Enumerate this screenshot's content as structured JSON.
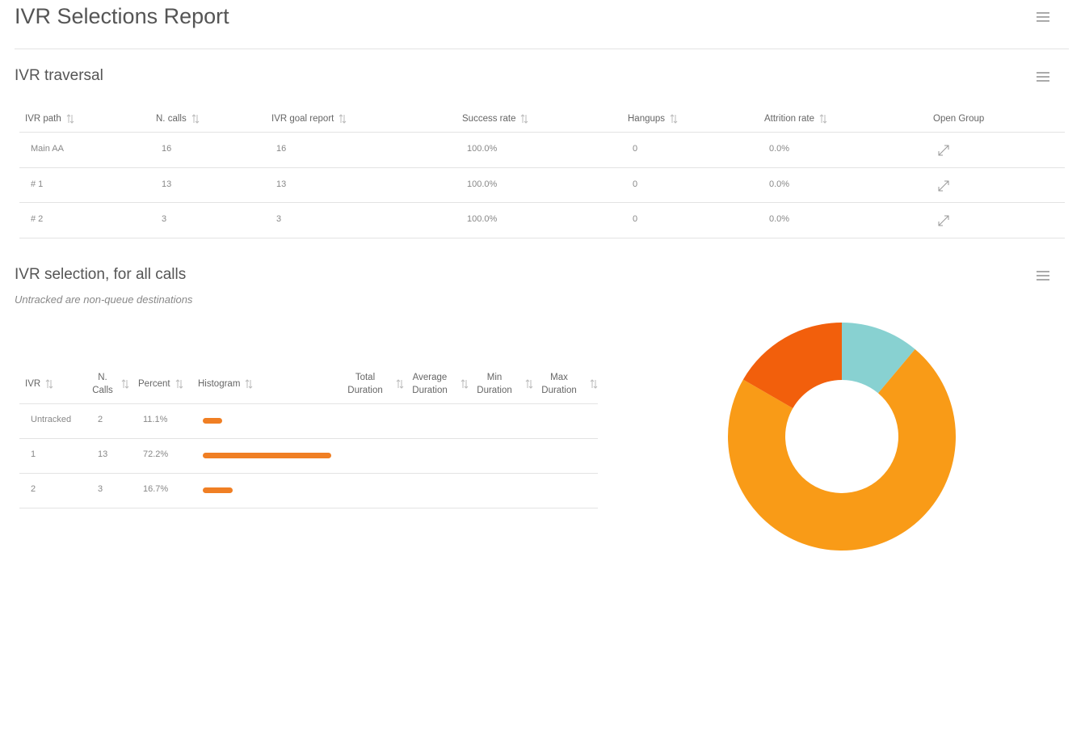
{
  "header": {
    "title": "IVR Selections Report"
  },
  "traversal": {
    "title": "IVR traversal",
    "columns": [
      "IVR path",
      "N. calls",
      "IVR goal report",
      "Success rate",
      "Hangups",
      "Attrition rate",
      "Open Group"
    ],
    "rows": [
      [
        "Main AA",
        16,
        16,
        "100.0%",
        0,
        "0.0%"
      ],
      [
        "# 1",
        13,
        13,
        "100.0%",
        0,
        "0.0%"
      ],
      [
        "# 2",
        3,
        3,
        "100.0%",
        0,
        "0.0%"
      ]
    ]
  },
  "selection": {
    "title": "IVR selection, for all calls",
    "subtitle": "Untracked are non-queue destinations",
    "columns": [
      "IVR",
      "N. Calls",
      "Percent",
      "Histogram",
      "Total Duration",
      "Average Duration",
      "Min Duration",
      "Max Duration"
    ],
    "rows": [
      {
        "ivr": "Untracked",
        "n_calls": 2,
        "percent": "11.1%"
      },
      {
        "ivr": "1",
        "n_calls": 13,
        "percent": "72.2%"
      },
      {
        "ivr": "2",
        "n_calls": 3,
        "percent": "16.7%"
      }
    ],
    "histogram_color": "#f07f24",
    "donut_colors": [
      "#88d1d1",
      "#f99b17",
      "#f25f0c"
    ]
  }
}
